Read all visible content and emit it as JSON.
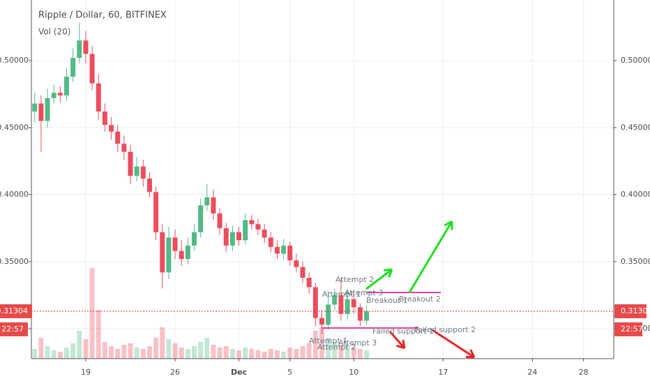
{
  "chart_data": {
    "type": "candlestick",
    "title": "Ripple / Dollar, 60, BITFINEX",
    "subtitle": "Vol (20)",
    "x": [
      15,
      15.5,
      16,
      16.5,
      17,
      17.5,
      18,
      18.5,
      19,
      19.5,
      20,
      20.5,
      21,
      21.5,
      22,
      22.5,
      23,
      23.5,
      24,
      24.5,
      25,
      25.5,
      26,
      26.5,
      27,
      27.5,
      28,
      28.5,
      29,
      29.5,
      30,
      30.5,
      31,
      31.5,
      32,
      32.5,
      33,
      33.5,
      34,
      34.5,
      35,
      35.5,
      36,
      36.5,
      37,
      37.5,
      38,
      38.5,
      39,
      39.5,
      40,
      40.5,
      41
    ],
    "open": [
      0.462,
      0.468,
      0.455,
      0.472,
      0.476,
      0.474,
      0.488,
      0.502,
      0.515,
      0.505,
      0.483,
      0.462,
      0.452,
      0.447,
      0.438,
      0.432,
      0.414,
      0.421,
      0.412,
      0.402,
      0.372,
      0.342,
      0.368,
      0.358,
      0.352,
      0.362,
      0.372,
      0.392,
      0.398,
      0.386,
      0.375,
      0.362,
      0.372,
      0.366,
      0.381,
      0.378,
      0.374,
      0.368,
      0.361,
      0.356,
      0.362,
      0.351,
      0.346,
      0.338,
      0.331,
      0.308,
      0.303,
      0.318,
      0.325,
      0.311,
      0.322,
      0.316,
      0.306
    ],
    "high": [
      0.476,
      0.474,
      0.479,
      0.482,
      0.481,
      0.494,
      0.509,
      0.528,
      0.522,
      0.511,
      0.49,
      0.468,
      0.458,
      0.452,
      0.444,
      0.437,
      0.428,
      0.426,
      0.417,
      0.406,
      0.378,
      0.376,
      0.374,
      0.366,
      0.368,
      0.378,
      0.397,
      0.408,
      0.404,
      0.39,
      0.379,
      0.377,
      0.376,
      0.386,
      0.385,
      0.382,
      0.378,
      0.372,
      0.366,
      0.367,
      0.365,
      0.356,
      0.35,
      0.342,
      0.334,
      0.314,
      0.327,
      0.33,
      0.338,
      0.329,
      0.328,
      0.319,
      0.317
    ],
    "low": [
      0.454,
      0.432,
      0.45,
      0.468,
      0.469,
      0.47,
      0.484,
      0.498,
      0.498,
      0.478,
      0.456,
      0.447,
      0.441,
      0.432,
      0.426,
      0.408,
      0.41,
      0.406,
      0.398,
      0.366,
      0.33,
      0.337,
      0.352,
      0.347,
      0.348,
      0.358,
      0.368,
      0.388,
      0.381,
      0.37,
      0.357,
      0.358,
      0.362,
      0.363,
      0.374,
      0.37,
      0.364,
      0.357,
      0.352,
      0.352,
      0.347,
      0.342,
      0.334,
      0.326,
      0.302,
      0.296,
      0.299,
      0.314,
      0.306,
      0.307,
      0.311,
      0.302,
      0.303
    ],
    "close": [
      0.468,
      0.455,
      0.472,
      0.476,
      0.474,
      0.488,
      0.502,
      0.515,
      0.505,
      0.483,
      0.462,
      0.452,
      0.447,
      0.438,
      0.432,
      0.414,
      0.421,
      0.412,
      0.402,
      0.372,
      0.342,
      0.368,
      0.358,
      0.352,
      0.362,
      0.372,
      0.392,
      0.398,
      0.386,
      0.375,
      0.362,
      0.372,
      0.366,
      0.381,
      0.378,
      0.374,
      0.368,
      0.361,
      0.356,
      0.362,
      0.351,
      0.346,
      0.338,
      0.331,
      0.308,
      0.303,
      0.318,
      0.325,
      0.311,
      0.322,
      0.316,
      0.306,
      0.313
    ],
    "volume": [
      14,
      30,
      18,
      12,
      10,
      16,
      22,
      40,
      28,
      130,
      70,
      24,
      18,
      14,
      20,
      22,
      16,
      14,
      18,
      30,
      45,
      28,
      22,
      16,
      14,
      18,
      24,
      30,
      20,
      16,
      18,
      14,
      12,
      16,
      14,
      12,
      10,
      14,
      12,
      10,
      16,
      14,
      18,
      22,
      40,
      45,
      30,
      24,
      20,
      18,
      16,
      14,
      12
    ],
    "up_color": "#53b987",
    "down_color": "#eb4d5c",
    "xlim": [
      14.74,
      60.37
    ],
    "xticks": [
      {
        "value": 19,
        "label": "19"
      },
      {
        "value": 26,
        "label": "26"
      },
      {
        "value": 31,
        "label": "Dec"
      },
      {
        "value": 35,
        "label": "5"
      },
      {
        "value": 40,
        "label": "10"
      },
      {
        "value": 47,
        "label": "17"
      },
      {
        "value": 54,
        "label": "24"
      },
      {
        "value": 58,
        "label": "28"
      }
    ],
    "ylim": [
      0.2777,
      0.5452
    ],
    "yticks": [
      {
        "value": 0.3,
        "label": "0.30000"
      },
      {
        "value": 0.35,
        "label": "0.35000"
      },
      {
        "value": 0.4,
        "label": "0.40000"
      },
      {
        "value": 0.45,
        "label": "0.45000"
      },
      {
        "value": 0.5,
        "label": "0.50000"
      }
    ],
    "grid": true,
    "last_price": 0.31304,
    "countdown": "22:57",
    "annotations": [
      "Attempt 2",
      "Attempt 3",
      "Attempt 1",
      "Breakout 1",
      "Breakout 2",
      "Failed support 1",
      "Failed support 2",
      "Attempt 1",
      "Attempt 2",
      "Attempt 3"
    ]
  }
}
